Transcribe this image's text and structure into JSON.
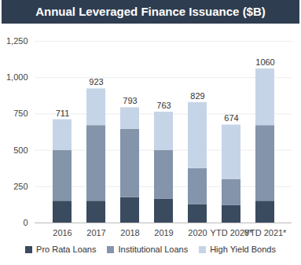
{
  "chart_data": {
    "type": "bar",
    "title": "Annual Leveraged Finance Issuance ($B)",
    "categories": [
      "2016",
      "2017",
      "2018",
      "2019",
      "2020",
      "YTD 2020*",
      "YTD 2021*"
    ],
    "series": [
      {
        "name": "Pro Rata Loans",
        "color": "#3a4a5f",
        "values": [
          150,
          150,
          175,
          165,
          125,
          120,
          150
        ]
      },
      {
        "name": "Institutional Loans",
        "color": "#8394ab",
        "values": [
          350,
          520,
          470,
          335,
          250,
          180,
          520
        ]
      },
      {
        "name": "High Yield Bonds",
        "color": "#c6d4e7",
        "values": [
          211,
          253,
          148,
          263,
          454,
          374,
          390
        ]
      }
    ],
    "totals": [
      711,
      923,
      793,
      763,
      829,
      674,
      1060
    ],
    "ylim": [
      0,
      1250
    ],
    "yticks": [
      0,
      250,
      500,
      750,
      1000,
      1250
    ],
    "stacked": true,
    "grid": true,
    "legend": "bottom"
  }
}
